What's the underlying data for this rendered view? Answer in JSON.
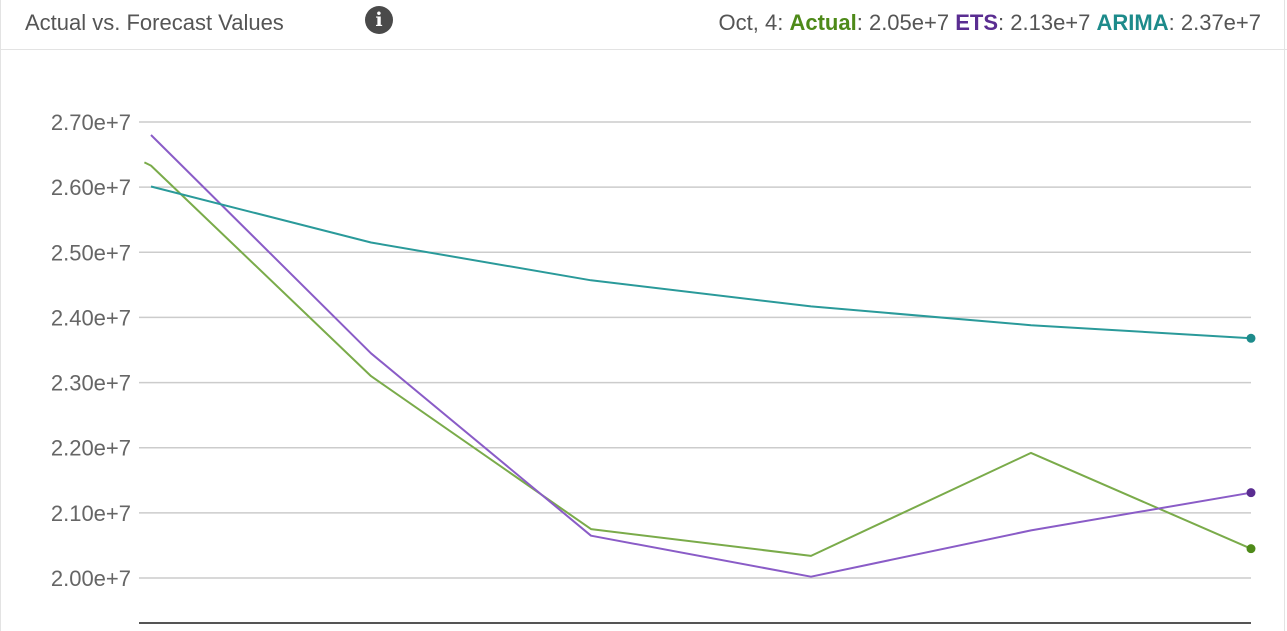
{
  "header": {
    "title": "Actual vs. Forecast Values",
    "info_icon": "info-icon",
    "readout": {
      "date": "Oct, 4",
      "items": [
        {
          "name": "Actual",
          "value": "2.05e+7",
          "color": "#4e8a19"
        },
        {
          "name": "ETS",
          "value": "2.13e+7",
          "color": "#5a2d91"
        },
        {
          "name": "ARIMA",
          "value": "2.37e+7",
          "color": "#1d8b8b"
        }
      ]
    }
  },
  "chart_data": {
    "type": "line",
    "title": "Actual vs. Forecast Values",
    "xlabel": "",
    "ylabel": "",
    "ylim": [
      19850000,
      27300000
    ],
    "yticks": [
      20000000,
      21000000,
      22000000,
      23000000,
      24000000,
      25000000,
      26000000,
      27000000
    ],
    "ytick_labels": [
      "2.00e+7",
      "2.10e+7",
      "2.20e+7",
      "2.30e+7",
      "2.40e+7",
      "2.50e+7",
      "2.60e+7",
      "2.70e+7"
    ],
    "x": [
      0,
      1,
      2,
      3,
      4,
      5
    ],
    "grid": true,
    "legend": "none",
    "series": [
      {
        "name": "Actual",
        "color": "#7aab4a",
        "end_color": "#4e8a19",
        "x": [
          -0.03,
          0,
          1,
          2,
          3,
          4,
          5
        ],
        "values": [
          26380000,
          26330000,
          23100000,
          20750000,
          20340000,
          21920000,
          20450000
        ]
      },
      {
        "name": "ETS",
        "color": "#8a5cc7",
        "end_color": "#5a2d91",
        "x": [
          0,
          1,
          2,
          3,
          4,
          5
        ],
        "values": [
          26800000,
          23450000,
          20650000,
          20020000,
          20730000,
          21310000
        ]
      },
      {
        "name": "ARIMA",
        "color": "#2a9a9a",
        "end_color": "#1d8b8b",
        "x": [
          0,
          1,
          2,
          3,
          4,
          5
        ],
        "values": [
          26010000,
          25150000,
          24570000,
          24170000,
          23880000,
          23680000
        ]
      }
    ]
  }
}
